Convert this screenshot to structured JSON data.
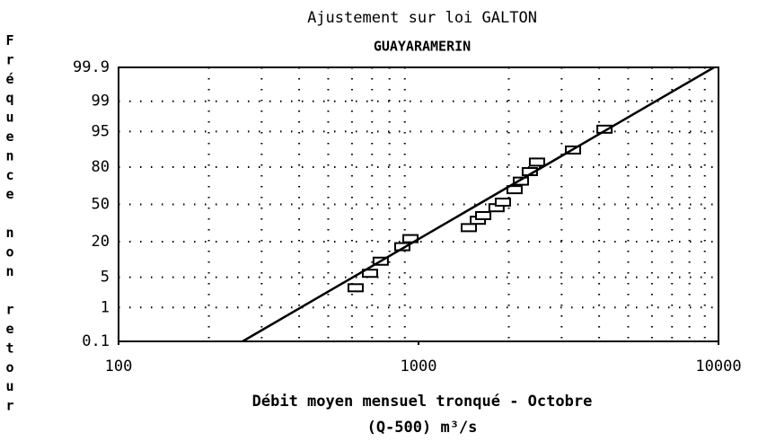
{
  "chart_data": {
    "type": "scatter",
    "title": "Ajustement sur loi GALTON",
    "subtitle": "GUAYARAMERIN",
    "y_label": "Fréquence non retour",
    "x_label": "Débit moyen mensuel tronqué - Octobre",
    "x_label_2": "(Q-500) m³/s",
    "x_scale": "log",
    "y_scale": "probability",
    "xlim": [
      100,
      10000
    ],
    "xticks": [
      100,
      1000,
      10000
    ],
    "ylim": [
      0.1,
      99.9
    ],
    "yticks": [
      0.1,
      1,
      5,
      20,
      50,
      80,
      95,
      99,
      99.9
    ],
    "grid": true,
    "series": [
      {
        "marker": "square",
        "color": "#000000",
        "x": [
          617,
          689,
          748,
          883,
          940,
          1471,
          1577,
          1643,
          1820,
          1911,
          2090,
          2194,
          2350,
          2483,
          3273,
          4169
        ],
        "values": [
          3,
          6,
          10,
          17,
          22,
          30,
          36,
          40,
          47,
          52,
          63,
          70,
          77,
          83,
          89,
          95.5
        ]
      },
      {
        "marker": "line",
        "color": "#000000",
        "x": [
          259,
          9660
        ],
        "values": [
          0.1,
          99.9
        ]
      }
    ]
  }
}
